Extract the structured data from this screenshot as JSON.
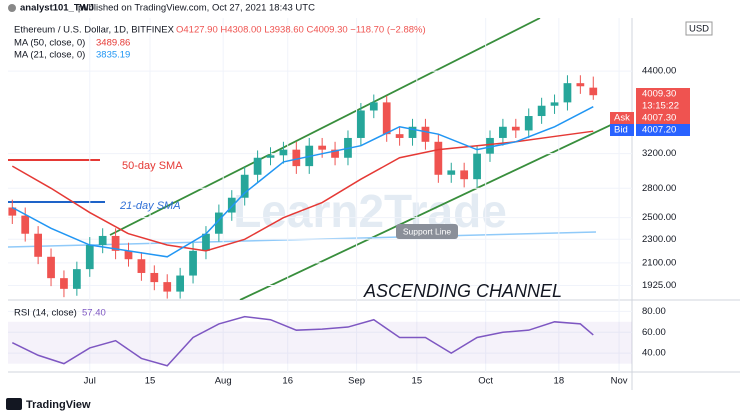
{
  "header": {
    "author": "analyst101_TWJ",
    "text": "published on TradingView.com, Oct 27, 2021 18:43 UTC"
  },
  "footer": "TradingView",
  "watermark": "Learn2Trade",
  "chart_data": [
    {
      "type": "candlestick",
      "title": "Ethereum / U.S. Dollar, 1D, BITFINEX",
      "ohlc_text": "O4127.90 H4308.00 L3938.60 C4009.30 −118.70 (−2.88%)",
      "x": [
        -18,
        -15,
        -12,
        -9,
        -6,
        -3,
        0,
        3,
        6,
        9,
        12,
        15,
        18,
        21,
        24,
        27,
        30,
        33,
        36,
        39,
        42,
        45,
        48,
        51,
        54,
        57,
        60,
        63,
        66,
        69,
        72,
        75,
        78,
        81,
        84,
        87,
        90,
        93,
        96,
        99,
        102,
        105,
        108,
        111,
        114,
        117
      ],
      "open": [
        2600,
        2520,
        2350,
        2150,
        1980,
        1900,
        2050,
        2250,
        2330,
        2200,
        2130,
        2020,
        1950,
        1880,
        2000,
        2200,
        2350,
        2550,
        2700,
        2950,
        3150,
        3180,
        3250,
        3050,
        3300,
        3250,
        3150,
        3400,
        3780,
        3900,
        3450,
        3400,
        3550,
        3350,
        2950,
        3000,
        2900,
        3200,
        3400,
        3550,
        3500,
        3700,
        3850,
        3900,
        4200,
        4127.9
      ],
      "high": [
        2680,
        2600,
        2420,
        2220,
        2040,
        2110,
        2320,
        2400,
        2400,
        2270,
        2190,
        2080,
        2010,
        2060,
        2270,
        2420,
        2630,
        2780,
        3040,
        3240,
        3280,
        3350,
        3350,
        3400,
        3400,
        3350,
        3500,
        3890,
        4020,
        4000,
        3550,
        3660,
        3660,
        3450,
        3090,
        3090,
        3300,
        3500,
        3660,
        3660,
        3810,
        3970,
        4020,
        4330,
        4330,
        4308
      ],
      "low": [
        2440,
        2280,
        2090,
        1920,
        1840,
        1850,
        1990,
        2180,
        2130,
        2070,
        1960,
        1890,
        1830,
        1830,
        1940,
        2130,
        2280,
        2470,
        2620,
        2860,
        3060,
        3080,
        2960,
        2960,
        3150,
        3060,
        3060,
        3300,
        3670,
        3350,
        3300,
        3300,
        3250,
        2860,
        2860,
        2810,
        2810,
        3100,
        3300,
        3400,
        3400,
        3590,
        3730,
        3780,
        4030,
        3938.6
      ],
      "close": [
        2520,
        2350,
        2150,
        1980,
        1900,
        2050,
        2250,
        2330,
        2200,
        2130,
        2020,
        1950,
        1880,
        2000,
        2200,
        2350,
        2550,
        2700,
        2950,
        3150,
        3180,
        3250,
        3050,
        3300,
        3250,
        3150,
        3400,
        3780,
        3900,
        3450,
        3400,
        3550,
        3350,
        2950,
        3000,
        2900,
        3200,
        3400,
        3550,
        3500,
        3700,
        3850,
        3900,
        4200,
        4150,
        4009.3
      ],
      "up_color": "#26a69a",
      "down_color": "#ef5350",
      "series": [
        {
          "name": "MA (50, close, 0)",
          "color": "#e53935",
          "x": [
            -18,
            -9,
            0,
            9,
            18,
            27,
            36,
            45,
            54,
            63,
            72,
            81,
            90,
            99,
            108,
            117
          ],
          "values": [
            3050,
            2800,
            2550,
            2350,
            2250,
            2200,
            2300,
            2500,
            2650,
            2900,
            3150,
            3250,
            3300,
            3350,
            3420,
            3489.86
          ]
        },
        {
          "name": "MA (21, close, 0)",
          "color": "#2196f3",
          "x": [
            -18,
            -9,
            0,
            9,
            18,
            27,
            36,
            45,
            54,
            63,
            72,
            81,
            90,
            99,
            108,
            117
          ],
          "values": [
            2600,
            2400,
            2250,
            2200,
            2150,
            2350,
            2750,
            3100,
            3200,
            3300,
            3550,
            3450,
            3250,
            3350,
            3550,
            3835.19
          ]
        }
      ],
      "xlim": [
        -19,
        126
      ],
      "xticks": [
        {
          "value": 0,
          "label": "Jul"
        },
        {
          "value": 14,
          "label": "15"
        },
        {
          "value": 31,
          "label": "Aug"
        },
        {
          "value": 46,
          "label": "16"
        },
        {
          "value": 62,
          "label": "Sep"
        },
        {
          "value": 76,
          "label": "15"
        },
        {
          "value": 92,
          "label": "Oct"
        },
        {
          "value": 109,
          "label": "18"
        },
        {
          "value": 123,
          "label": "Nov"
        }
      ],
      "ylim": [
        1820,
        5400
      ],
      "yticks": [
        {
          "value": 4400,
          "label": "4400.00"
        },
        {
          "value": 3200,
          "label": "3200.00"
        },
        {
          "value": 2800,
          "label": "2800.00"
        },
        {
          "value": 2500,
          "label": "2500.00"
        },
        {
          "value": 2300,
          "label": "2300.00"
        },
        {
          "value": 2100,
          "label": "2100.00"
        },
        {
          "value": 1925,
          "label": "1925.00"
        }
      ],
      "log_scale": true,
      "grid": true,
      "annotations": [
        "ASCENDING CHANNEL",
        "Support Line",
        "50-day SMA",
        "21-day SMA"
      ],
      "price_tags": {
        "last": "4009.30",
        "countdown": "13:15:22",
        "ask": "Ask",
        "ask_price": "4007.30",
        "bid": "Bid",
        "bid_price": "4007.20"
      },
      "currency": "USD"
    },
    {
      "type": "line",
      "series": [
        {
          "name": "RSI (14, close)",
          "color": "#7e57c2",
          "x": [
            -18,
            -12,
            -6,
            0,
            6,
            12,
            18,
            24,
            30,
            36,
            42,
            48,
            54,
            60,
            66,
            72,
            78,
            84,
            90,
            96,
            102,
            108,
            114,
            117
          ],
          "values": [
            50,
            38,
            30,
            45,
            52,
            35,
            28,
            55,
            68,
            75,
            72,
            62,
            63,
            65,
            72,
            55,
            55,
            40,
            55,
            60,
            62,
            70,
            68,
            57.4
          ]
        }
      ],
      "readout": "57.40",
      "xlim": [
        -19,
        126
      ],
      "ylim": [
        22,
        88
      ],
      "yticks": [
        {
          "value": 80,
          "label": "80.00"
        },
        {
          "value": 60,
          "label": "60.00"
        },
        {
          "value": 40,
          "label": "40.00"
        }
      ],
      "grid": true
    }
  ]
}
